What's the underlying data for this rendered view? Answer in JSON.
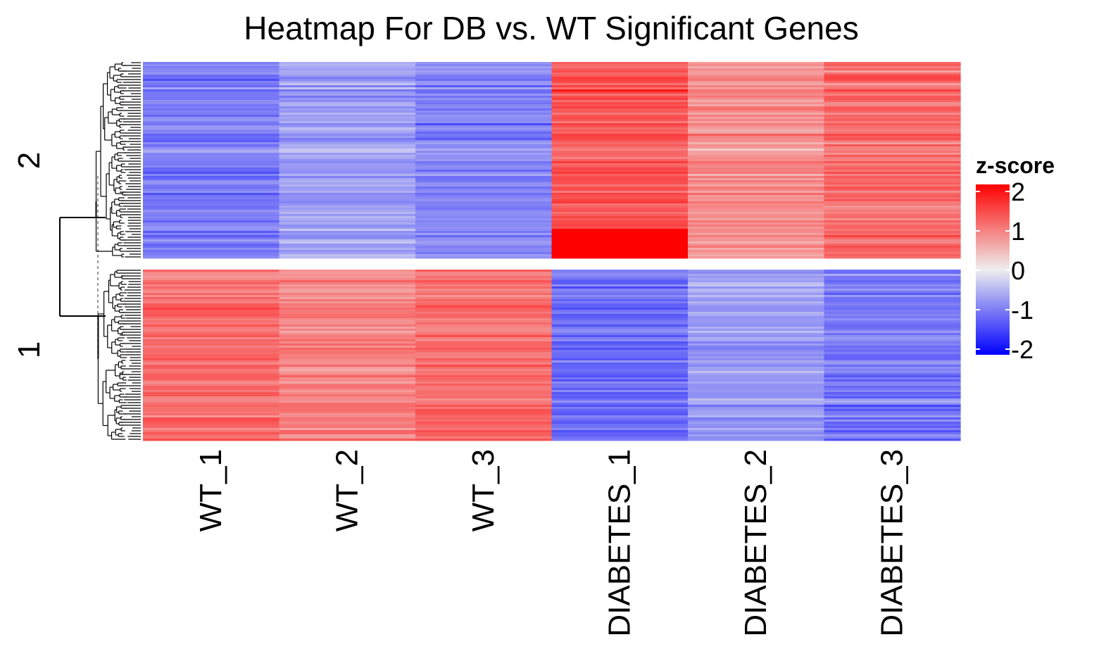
{
  "chart_data": {
    "type": "heatmap",
    "title": "Heatmap For DB vs. WT Significant Genes",
    "columns": [
      "WT_1",
      "WT_2",
      "WT_3",
      "DIABETES_1",
      "DIABETES_2",
      "DIABETES_3"
    ],
    "row_clusters": [
      {
        "label": "2",
        "column_means": [
          -1.0,
          -0.7,
          -0.9,
          1.3,
          0.8,
          1.1
        ],
        "note": "approximate per-column mean z-score read from colour"
      },
      {
        "label": "1",
        "column_means": [
          1.1,
          0.9,
          1.1,
          -1.1,
          -0.7,
          -1.0
        ],
        "note": "approximate per-column mean z-score read from colour"
      }
    ],
    "legend": {
      "title": "z-score",
      "ticks": [
        "2",
        "1",
        "0",
        "-1",
        "-2"
      ],
      "range": [
        -2,
        2
      ]
    },
    "colors": {
      "low": "#0000ff",
      "mid": "#eeeeee",
      "high": "#ff0000"
    }
  }
}
